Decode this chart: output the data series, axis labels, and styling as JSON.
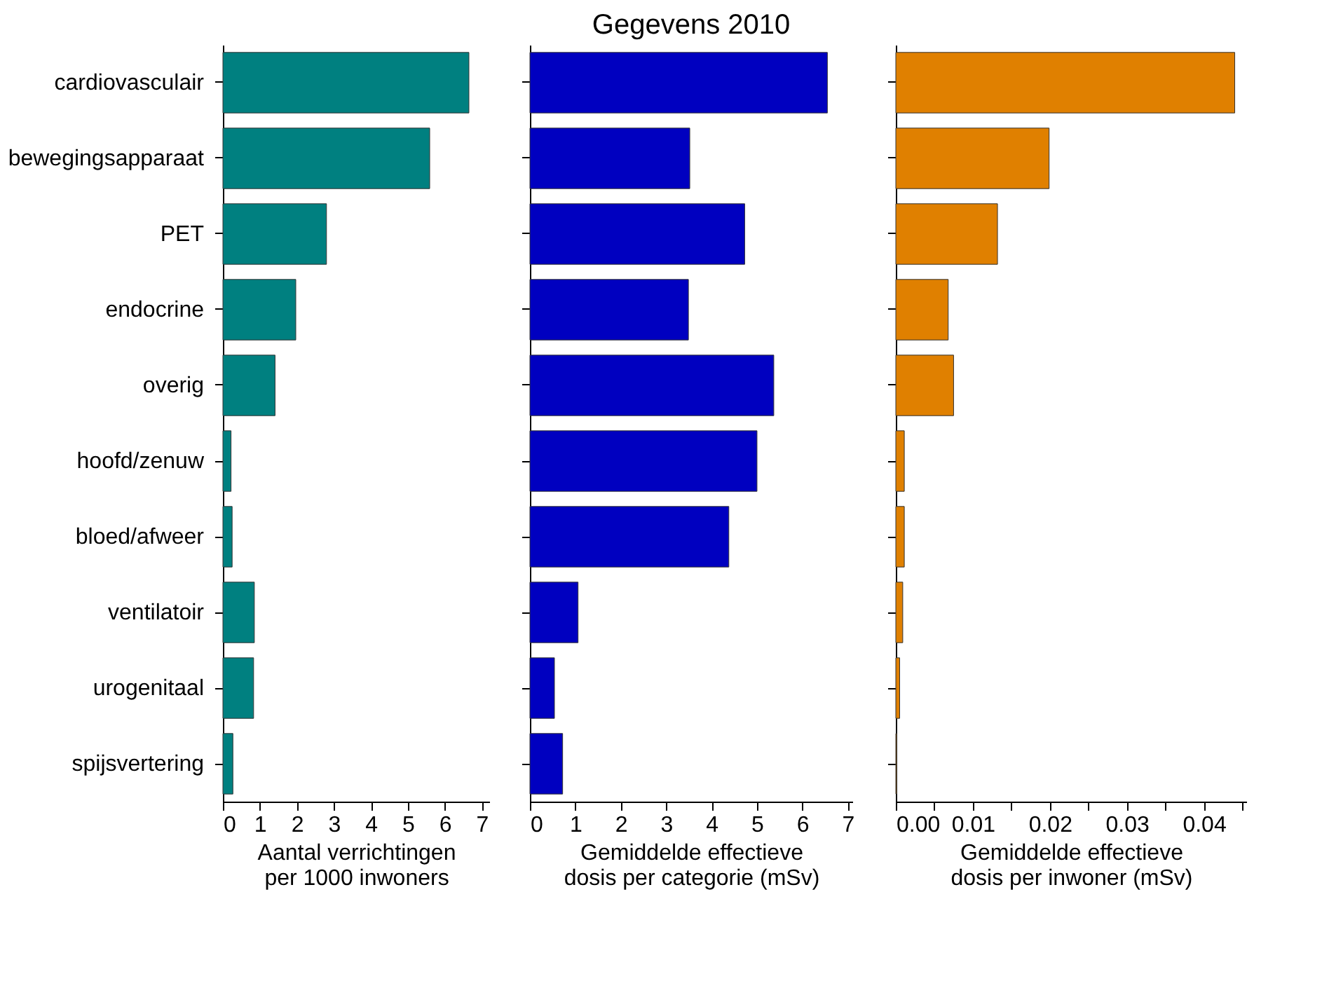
{
  "chart_data": [
    {
      "type": "bar",
      "orientation": "horizontal",
      "categories": [
        "cardiovasculair",
        "bewegingsapparaat",
        "PET",
        "endocrine",
        "overig",
        "hoofd/zenuw",
        "bloed/afweer",
        "ventilatoir",
        "urogenitaal",
        "spijsvertering"
      ],
      "series": [
        {
          "color": "#008080",
          "values": [
            6.65,
            5.59,
            2.8,
            1.97,
            1.41,
            0.22,
            0.25,
            0.85,
            0.83,
            0.27
          ]
        }
      ],
      "xlabel": "Aantal verrichtingen\nper 1000 inwoners",
      "xlim": [
        0,
        7.2
      ],
      "xticks": [
        0,
        1,
        2,
        3,
        4,
        5,
        6,
        7
      ],
      "grid": false
    },
    {
      "type": "bar",
      "orientation": "horizontal",
      "title": "Gegevens 2010",
      "categories": [
        null,
        null,
        null,
        null,
        null,
        null,
        null,
        null,
        null,
        null
      ],
      "series": [
        {
          "color": "#0000c0",
          "values": [
            6.55,
            3.52,
            4.73,
            3.49,
            5.37,
            5.0,
            4.38,
            1.06,
            0.54,
            0.72
          ]
        }
      ],
      "xlabel": "Gemiddelde effectieve\ndosis per categorie (mSv)",
      "xlim": [
        0,
        7.1
      ],
      "xticks": [
        0,
        1,
        2,
        3,
        4,
        5,
        6,
        7
      ],
      "tick_labels": "x",
      "grid": false
    },
    {
      "type": "bar",
      "orientation": "horizontal",
      "categories": [
        null,
        null,
        null,
        null,
        null,
        null,
        null,
        null,
        null,
        null
      ],
      "series": [
        {
          "color": "#e08000",
          "values": [
            0.044,
            0.0199,
            0.0132,
            0.0068,
            0.0075,
            0.0011,
            0.0011,
            0.0009,
            0.0005,
            0.0001
          ]
        }
      ],
      "xlabel": "Gemiddelde effectieve\ndosis per inwoner (mSv)",
      "xlim": [
        0,
        0.0455
      ],
      "xticks": [
        {
          "value": 0,
          "label": "0.00"
        },
        {
          "value": 0.005,
          "label": null
        },
        {
          "value": 0.01,
          "label": "0.01"
        },
        {
          "value": 0.015,
          "label": null
        },
        {
          "value": 0.02,
          "label": "0.02"
        },
        {
          "value": 0.025,
          "label": null
        },
        {
          "value": 0.03,
          "label": "0.03"
        },
        {
          "value": 0.035,
          "label": null
        },
        {
          "value": 0.04,
          "label": "0.04"
        },
        {
          "value": 0.045,
          "label": null
        }
      ],
      "tick_labels": "x",
      "grid": false
    }
  ]
}
